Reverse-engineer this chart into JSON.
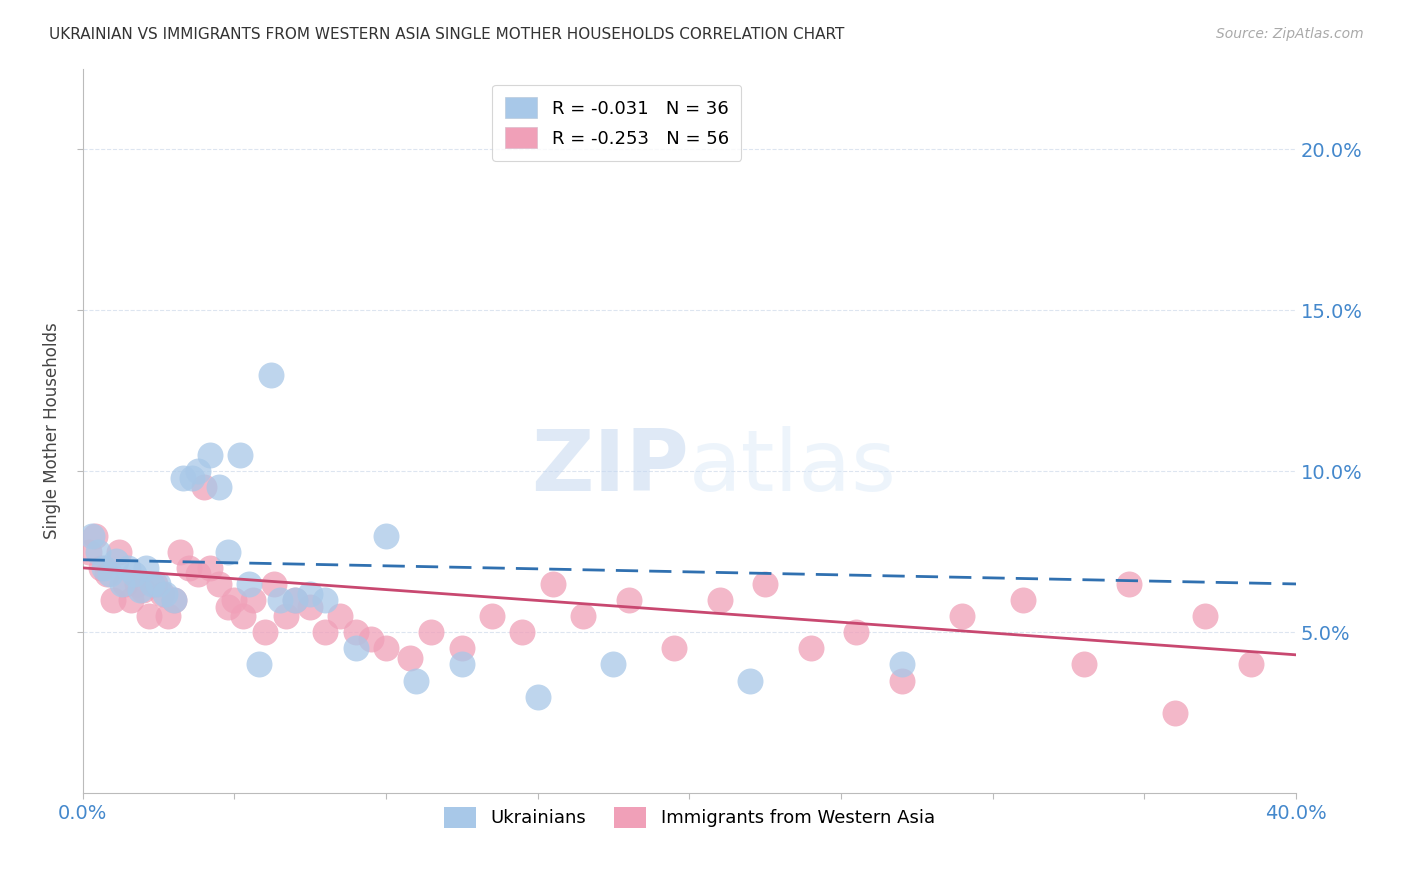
{
  "title": "UKRAINIAN VS IMMIGRANTS FROM WESTERN ASIA SINGLE MOTHER HOUSEHOLDS CORRELATION CHART",
  "source": "Source: ZipAtlas.com",
  "ylabel": "Single Mother Households",
  "y_ticks_right": [
    0.05,
    0.1,
    0.15,
    0.2
  ],
  "y_tick_labels_right": [
    "5.0%",
    "10.0%",
    "15.0%",
    "20.0%"
  ],
  "xlim": [
    0.0,
    0.4
  ],
  "ylim": [
    0.0,
    0.225
  ],
  "legend_entry_blue": "R = -0.031   N = 36",
  "legend_entry_pink": "R = -0.253   N = 56",
  "legend_label_ukrainians": "Ukrainians",
  "legend_label_immigrants": "Immigrants from Western Asia",
  "watermark_zip": "ZIP",
  "watermark_atlas": "atlas",
  "blue_scatter_x": [
    0.003,
    0.005,
    0.007,
    0.009,
    0.011,
    0.013,
    0.015,
    0.017,
    0.019,
    0.021,
    0.023,
    0.025,
    0.027,
    0.03,
    0.033,
    0.036,
    0.038,
    0.042,
    0.045,
    0.048,
    0.052,
    0.055,
    0.058,
    0.062,
    0.065,
    0.07,
    0.075,
    0.08,
    0.09,
    0.1,
    0.11,
    0.125,
    0.15,
    0.175,
    0.22,
    0.27
  ],
  "blue_scatter_y": [
    0.08,
    0.075,
    0.07,
    0.068,
    0.072,
    0.065,
    0.07,
    0.068,
    0.063,
    0.07,
    0.065,
    0.065,
    0.062,
    0.06,
    0.098,
    0.098,
    0.1,
    0.105,
    0.095,
    0.075,
    0.105,
    0.065,
    0.04,
    0.13,
    0.06,
    0.06,
    0.062,
    0.06,
    0.045,
    0.08,
    0.035,
    0.04,
    0.03,
    0.04,
    0.035,
    0.04
  ],
  "pink_scatter_x": [
    0.002,
    0.004,
    0.006,
    0.008,
    0.01,
    0.012,
    0.014,
    0.016,
    0.018,
    0.02,
    0.022,
    0.024,
    0.026,
    0.028,
    0.03,
    0.032,
    0.035,
    0.038,
    0.04,
    0.042,
    0.045,
    0.048,
    0.05,
    0.053,
    0.056,
    0.06,
    0.063,
    0.067,
    0.07,
    0.075,
    0.08,
    0.085,
    0.09,
    0.095,
    0.1,
    0.108,
    0.115,
    0.125,
    0.135,
    0.145,
    0.155,
    0.165,
    0.18,
    0.195,
    0.21,
    0.225,
    0.24,
    0.255,
    0.27,
    0.29,
    0.31,
    0.33,
    0.345,
    0.36,
    0.37,
    0.385
  ],
  "pink_scatter_y": [
    0.075,
    0.08,
    0.07,
    0.068,
    0.06,
    0.075,
    0.065,
    0.06,
    0.065,
    0.063,
    0.055,
    0.065,
    0.062,
    0.055,
    0.06,
    0.075,
    0.07,
    0.068,
    0.095,
    0.07,
    0.065,
    0.058,
    0.06,
    0.055,
    0.06,
    0.05,
    0.065,
    0.055,
    0.06,
    0.058,
    0.05,
    0.055,
    0.05,
    0.048,
    0.045,
    0.042,
    0.05,
    0.045,
    0.055,
    0.05,
    0.065,
    0.055,
    0.06,
    0.045,
    0.06,
    0.065,
    0.045,
    0.05,
    0.035,
    0.055,
    0.06,
    0.04,
    0.065,
    0.025,
    0.055,
    0.04
  ],
  "blue_line_color": "#3070b0",
  "pink_line_color": "#c84870",
  "blue_dot_color": "#a8c8e8",
  "pink_dot_color": "#f0a0b8",
  "grid_color": "#dde5f0",
  "background_color": "#ffffff",
  "title_color": "#333333",
  "axis_label_color": "#4488cc"
}
